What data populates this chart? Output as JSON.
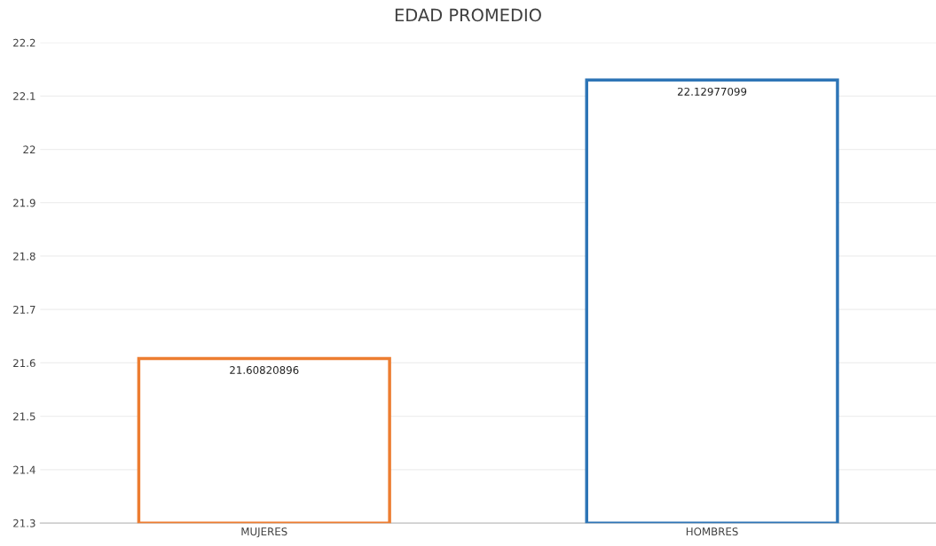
{
  "chart_data": {
    "type": "bar",
    "title": "EDAD PROMEDIO",
    "categories": [
      "MUJERES",
      "HOMBRES"
    ],
    "values": [
      21.60820896,
      22.12977099
    ],
    "colors": [
      "#ed7d31",
      "#2e75b6"
    ],
    "ylim": [
      21.3,
      22.2
    ],
    "yticks": [
      21.3,
      21.4,
      21.5,
      21.6,
      21.7,
      21.8,
      21.9,
      22,
      22.1,
      22.2
    ],
    "grid": "y",
    "data_labels": true
  }
}
